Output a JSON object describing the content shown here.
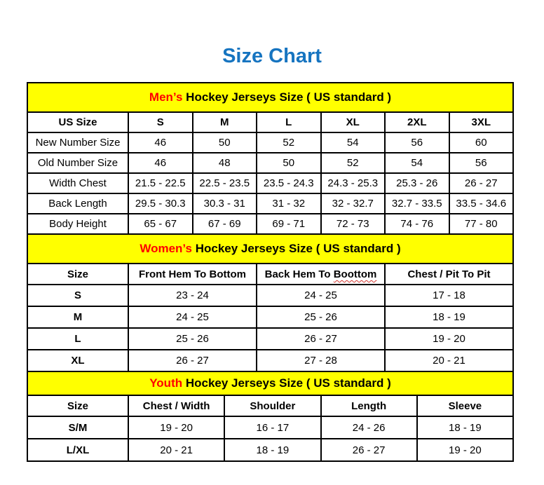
{
  "page": {
    "title": "Size Chart"
  },
  "colors": {
    "title": "#1674C0",
    "section_header_bg": "#FFFF00",
    "section_header_highlight": "#FF0000",
    "text": "#000000",
    "border": "#000000",
    "background": "#FFFFFF"
  },
  "tables": [
    {
      "id": "mens",
      "header": {
        "highlight": "Men’s",
        "rest": " Hockey Jerseys Size ( US standard )"
      },
      "columns": [
        "US Size",
        "S",
        "M",
        "L",
        "XL",
        "2XL",
        "3XL"
      ],
      "rows": [
        [
          "New Number Size",
          "46",
          "50",
          "52",
          "54",
          "56",
          "60"
        ],
        [
          "Old Number Size",
          "46",
          "48",
          "50",
          "52",
          "54",
          "56"
        ],
        [
          "Width Chest",
          "21.5 - 22.5",
          "22.5 - 23.5",
          "23.5 - 24.3",
          "24.3 - 25.3",
          "25.3 - 26",
          "26 - 27"
        ],
        [
          "Back Length",
          "29.5 - 30.3",
          "30.3 - 31",
          "31 - 32",
          "32 - 32.7",
          "32.7 - 33.5",
          "33.5 - 34.6"
        ],
        [
          "Body Height",
          "65 - 67",
          "67 - 69",
          "69 - 71",
          "72 - 73",
          "74 - 76",
          "77 - 80"
        ]
      ]
    },
    {
      "id": "womens",
      "header": {
        "highlight": "Women’s",
        "rest": " Hockey Jerseys Size ( US standard )"
      },
      "columns": [
        "Size",
        "Front Hem To Bottom",
        "Back Hem To Boottom",
        "Chest / Pit To Pit"
      ],
      "squiggle": {
        "col": 2,
        "word": "Boottom"
      },
      "rows": [
        [
          "S",
          "23 - 24",
          "24 - 25",
          "17 - 18"
        ],
        [
          "M",
          "24 - 25",
          "25 - 26",
          "18 - 19"
        ],
        [
          "L",
          "25 - 26",
          "26 - 27",
          "19 - 20"
        ],
        [
          "XL",
          "26 - 27",
          "27 - 28",
          "20 - 21"
        ]
      ]
    },
    {
      "id": "youth",
      "header": {
        "highlight": "Youth",
        "rest": " Hockey Jerseys Size ( US standard )"
      },
      "columns": [
        "Size",
        "Chest / Width",
        "Shoulder",
        "Length",
        "Sleeve"
      ],
      "rows": [
        [
          "S/M",
          "19 - 20",
          "16 - 17",
          "24 - 26",
          "18 - 19"
        ],
        [
          "L/XL",
          "20 - 21",
          "18 - 19",
          "26 - 27",
          "19 - 20"
        ]
      ]
    }
  ]
}
